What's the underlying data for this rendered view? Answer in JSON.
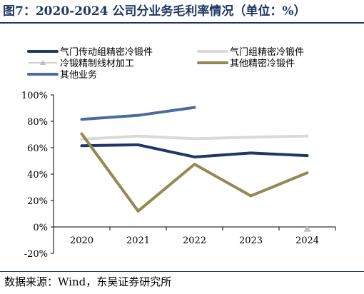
{
  "figure": {
    "title": "图7：2020-2024 公司分业务毛利率情况（单位：%）",
    "source": "数据来源：Wind，东吴证券研究所"
  },
  "chart_data": {
    "type": "line",
    "title": "",
    "xlabel": "",
    "ylabel": "",
    "categories": [
      "2020",
      "2021",
      "2022",
      "2023",
      "2024"
    ],
    "ylim": [
      -20,
      100
    ],
    "yticks": [
      -20,
      0,
      20,
      40,
      60,
      80,
      100
    ],
    "ytick_labels": [
      "-20%",
      "0%",
      "20%",
      "40%",
      "60%",
      "80%",
      "100%"
    ],
    "grid": false,
    "legend_position": "top",
    "series": [
      {
        "name": "气门传动组精密冷锻件",
        "color": "#1f3864",
        "marker": "none",
        "values": [
          61.5,
          62.2,
          53.0,
          56.0,
          54.0
        ]
      },
      {
        "name": "气门组精密冷锻件",
        "color": "#d9d9d9",
        "marker": "none",
        "values": [
          66.5,
          68.8,
          66.8,
          68.0,
          68.8
        ]
      },
      {
        "name": "冷锻精制线材加工",
        "color": "#bfbfbf",
        "marker": "triangle",
        "values": [
          null,
          null,
          null,
          null,
          -1.5
        ]
      },
      {
        "name": "其他精密冷锻件",
        "color": "#938953",
        "marker": "none",
        "values": [
          70.5,
          12.0,
          47.5,
          23.5,
          41.0
        ]
      },
      {
        "name": "其他业务",
        "color": "#4a6c9b",
        "marker": "none",
        "values": [
          81.5,
          84.5,
          90.5,
          null,
          null
        ]
      }
    ]
  }
}
